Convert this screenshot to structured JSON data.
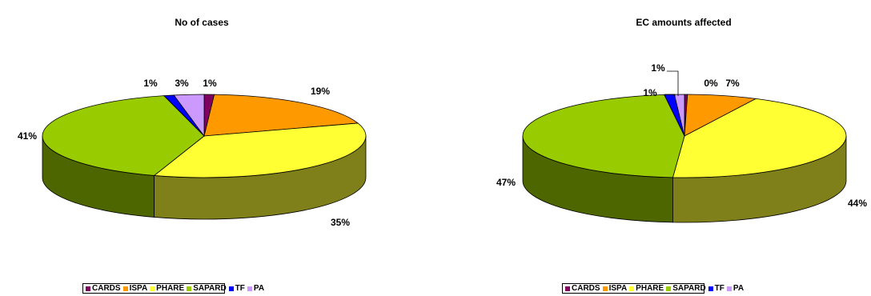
{
  "chart_data": [
    {
      "type": "pie",
      "title": "No of cases",
      "categories": [
        "CARDS",
        "ISPA",
        "PHARE",
        "SAPARD",
        "TF",
        "PA"
      ],
      "values": [
        1,
        19,
        35,
        41,
        1,
        3
      ],
      "labels": [
        "1%",
        "19%",
        "35%",
        "41%",
        "1%",
        "3%"
      ],
      "legend": "bottom"
    },
    {
      "type": "pie",
      "title": "EC amounts affected",
      "categories": [
        "CARDS",
        "ISPA",
        "PHARE",
        "SAPARD",
        "TF",
        "PA"
      ],
      "values": [
        0,
        7,
        44,
        47,
        1,
        1
      ],
      "labels": [
        "0%",
        "7%",
        "44%",
        "47%",
        "1%",
        "1%"
      ],
      "legend": "bottom"
    }
  ],
  "colors": {
    "CARDS": "#800060",
    "ISPA": "#FF9900",
    "PHARE": "#FFFF33",
    "SAPARD": "#99CC00",
    "TF": "#0000FF",
    "PA": "#CC99FF"
  }
}
